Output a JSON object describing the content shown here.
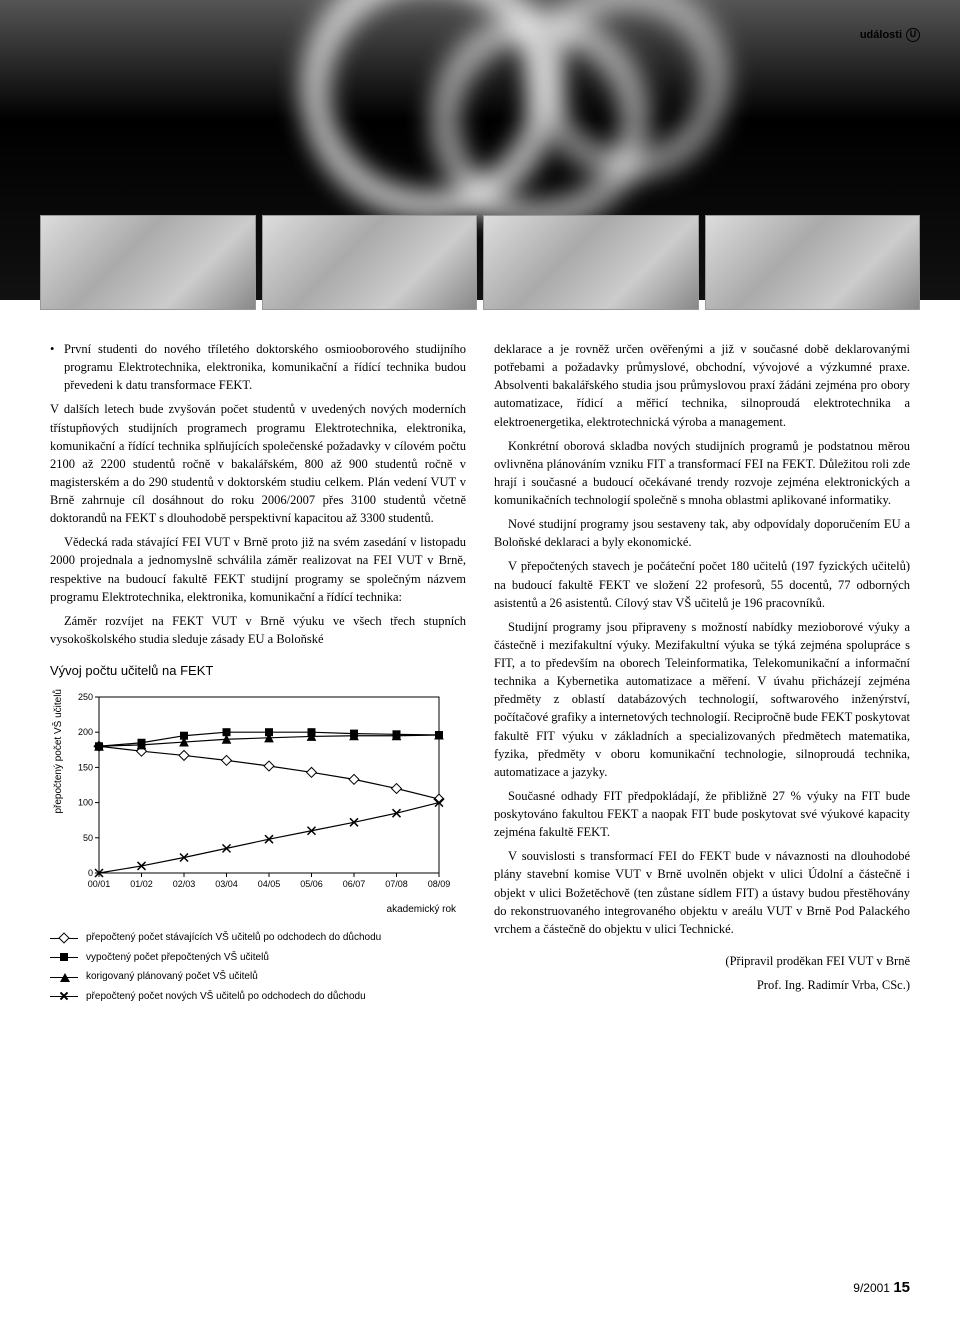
{
  "header": {
    "label": "události",
    "glyph": "U"
  },
  "left_column": {
    "bullet": "První studenti do nového tříletého doktorského osmiooborového studijního programu Elektrotechnika, elektronika, komunikační a řídící technika budou převedeni k datu transformace FEKT.",
    "p1": "V dalších letech bude zvyšován počet studentů v uvedených nových moderních třístupňových studijních programech programu Elektrotechnika, elektronika, komunikační a řídící technika splňujících společenské požadavky v cílovém počtu 2100 až 2200 studentů ročně v bakalářském, 800 až 900 studentů ročně v magisterském a do 290 studentů v doktorském studiu celkem. Plán vedení VUT v Brně zahrnuje cíl dosáhnout do roku 2006/2007 přes 3100 studentů včetně doktorandů na FEKT s dlouhodobě perspektivní kapacitou až 3300 studentů.",
    "p2": "Vědecká rada stávající FEI VUT v Brně proto již na svém zasedání v listopadu 2000 projednala a jednomyslně schválila záměr realizovat na FEI VUT v Brně, respektive na budoucí fakultě FEKT studijní programy se společným názvem programu Elektrotechnika, elektronika, komunikační a řídící technika:",
    "p3": "Záměr rozvíjet na FEKT VUT v Brně výuku ve všech třech stupních vysokoškolského studia sleduje zásady EU a Boloňské"
  },
  "chart": {
    "type": "line",
    "title": "Vývoj počtu učitelů na FEKT",
    "ylabel": "přepočtený počet VŠ učitelů",
    "xlabel": "akademický rok",
    "ylim": [
      0,
      250
    ],
    "ytick_step": 50,
    "categories": [
      "00/01",
      "01/02",
      "02/03",
      "03/04",
      "04/05",
      "05/06",
      "06/07",
      "07/08",
      "08/09"
    ],
    "series": [
      {
        "name": "přepočtený počet stávajících VŠ učitelů po odchodech do důchodu",
        "marker": "diamond",
        "values": [
          180,
          173,
          167,
          160,
          152,
          143,
          133,
          120,
          105
        ]
      },
      {
        "name": "vypočtený počet přepočtených VŠ učitelů",
        "marker": "square",
        "values": [
          180,
          185,
          195,
          200,
          200,
          200,
          198,
          197,
          196
        ]
      },
      {
        "name": "korigovaný plánovaný počet VŠ učitelů",
        "marker": "triangle",
        "values": [
          180,
          182,
          186,
          190,
          192,
          194,
          195,
          195,
          196
        ]
      },
      {
        "name": "přepočtený počet nových VŠ učitelů po odchodech do důchodu",
        "marker": "cross",
        "values": [
          0,
          10,
          22,
          35,
          48,
          60,
          72,
          85,
          100
        ]
      }
    ],
    "background_color": "#ffffff",
    "axis_color": "#000000",
    "grid_color": "#000000",
    "font_family": "Arial",
    "tick_fontsize": 9
  },
  "legend_items": [
    "přepočtený počet stávajících VŠ učitelů po odchodech do důchodu",
    "vypočtený počet přepočtených VŠ učitelů",
    "korigovaný plánovaný počet VŠ učitelů",
    "přepočtený počet nových VŠ učitelů po odchodech do důchodu"
  ],
  "right_column": {
    "p1": "deklarace a je rovněž určen ověřenými a již v současné době deklarovanými potřebami a požadavky průmyslové, obchodní, vývojové a výzkumné praxe. Absolventi bakalářského studia jsou průmyslovou praxí žádáni zejména pro obory automatizace, řídicí a měřicí technika, silnoproudá elektrotechnika a elektroenergetika, elektrotechnická výroba a management.",
    "p2": "Konkrétní oborová skladba nových studijních programů je podstatnou měrou ovlivněna plánováním vzniku FIT a transformací FEI na FEKT. Důležitou roli zde hrají i současné a budoucí očekávané trendy rozvoje zejména elektronických a komunikačních technologií společně s mnoha oblastmi aplikované informatiky.",
    "p3": "Nové studijní programy jsou sestaveny tak, aby odpovídaly doporučením EU a Boloňské deklaraci a byly ekonomické.",
    "p4": "V přepočtených stavech je počáteční počet 180 učitelů (197 fyzických učitelů) na budoucí fakultě FEKT ve složení 22 profesorů, 55 docentů, 77 odborných asistentů a 26 asistentů. Cílový stav VŠ učitelů je 196 pracovníků.",
    "p5": "Studijní programy jsou připraveny s možností nabídky mezioborové výuky a částečně i mezifakultní výuky. Mezifakultní výuka se týká zejména spolupráce s FIT, a to především na oborech Teleinformatika, Telekomunikační a informační technika a Kybernetika automatizace a měření. V úvahu přicházejí zejména předměty z oblastí databázových technologií, softwarového inženýrství, počítačové grafiky a internetových technologií. Recipročně bude FEKT poskytovat fakultě FIT výuku v základních a specializovaných předmětech matematika, fyzika, předměty v oboru komunikační technologie, silnoproudá technika, automatizace a jazyky.",
    "p6": "Současné odhady FIT předpokládají, že přibližně 27 % výuky na FIT bude poskytováno fakultou FEKT a naopak FIT bude poskytovat své výukové kapacity zejména fakultě FEKT.",
    "p7": "V souvislosti s transformací FEI do FEKT bude v návaznosti na dlouhodobé plány stavební komise VUT v Brně uvolněn objekt v ulici Údolní a částečně i objekt v ulici Božetěchově (ten zůstane sídlem FIT) a ústavy budou přestěhovány do rekonstruovaného integrovaného objektu v areálu VUT v Brně Pod Palackého vrchem a částečně do objektu v ulici Technické.",
    "author1": "(Připravil proděkan FEI VUT v Brně",
    "author2": "Prof. Ing. Radimír Vrba, CSc.)"
  },
  "footer": {
    "issue": "9/2001",
    "page": "15"
  }
}
